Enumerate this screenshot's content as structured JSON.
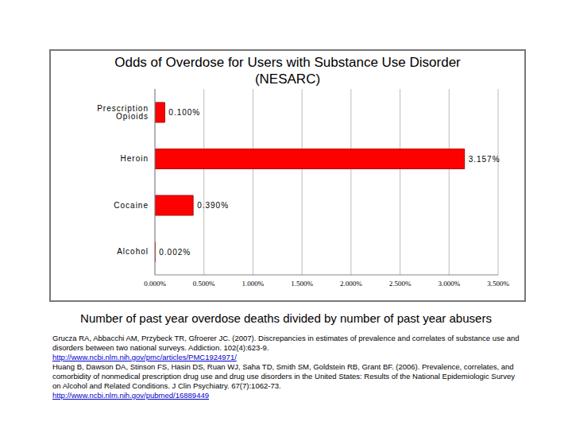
{
  "chart_data": {
    "type": "bar",
    "title": "Odds of Overdose for Users with Substance Use Disorder (NESARC)",
    "caption": "Number of past year overdose deaths divided by number of past year abusers",
    "references": [
      {
        "text": "Grucza RA, Abbacchi AM, Przybeck TR, Gfroerer JC. (2007). Discrepancies in estimates of prevalence and correlates of substance use and disorders between two national surveys. Addiction. 102(4):623-9.",
        "url": "http://www.ncbi.nlm.nih.gov/pmc/articles/PMC1924971/"
      },
      {
        "text": "Huang B, Dawson DA, Stinson FS, Hasin DS, Ruan WJ, Saha TD, Smith SM, Goldstein RB, Grant BF. (2006). Prevalence, correlates, and comorbidity of nonmedical prescription drug use and drug use disorders in the United States: Results of the National Epidemiologic Survey on Alcohol and Related Conditions. J Clin Psychiatry. 67(7):1062-73.",
        "url": "http://www.ncbi.nlm.nih.gov/pubmed/16889449"
      }
    ],
    "orientation": "horizontal",
    "categories": [
      "Prescription Opioids",
      "Heroin",
      "Cocaine",
      "Alcohol"
    ],
    "values": [
      0.1,
      3.157,
      0.39,
      0.002
    ],
    "value_labels": [
      "0.100%",
      "3.157%",
      "0.390%",
      "0.002%"
    ],
    "data_labels": true,
    "color": "#ff0000",
    "xlim": [
      0,
      3.5
    ],
    "xticks": [
      {
        "value": 0,
        "label": "0.000%"
      },
      {
        "value": 0.5,
        "label": "0.500%"
      },
      {
        "value": 1,
        "label": "1.000%"
      },
      {
        "value": 1.5,
        "label": "1.500%"
      },
      {
        "value": 2,
        "label": "2.000%"
      },
      {
        "value": 2.5,
        "label": "2.500%"
      },
      {
        "value": 3,
        "label": "3.000%"
      },
      {
        "value": 3.5,
        "label": "3.500%"
      }
    ],
    "grid": true
  }
}
